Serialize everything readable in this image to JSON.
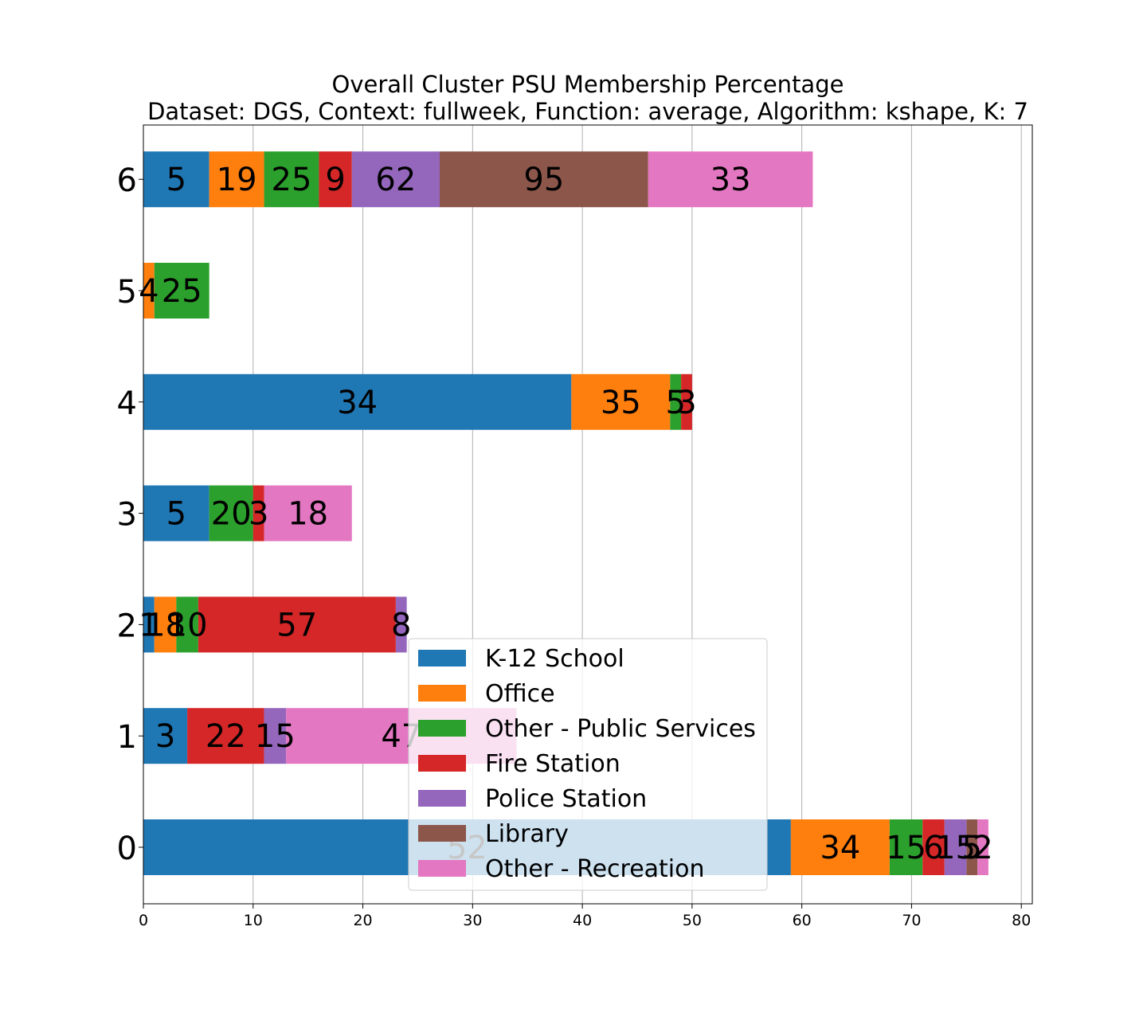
{
  "chart_data": {
    "type": "bar",
    "orientation": "horizontal",
    "stacked": true,
    "title": "Overall Cluster  PSU Membership Percentage",
    "subtitle": "Dataset: DGS, Context: fullweek, Function: average, Algorithm: kshape, K: 7",
    "xlabel": "",
    "ylabel": "",
    "xlim": [
      0,
      81
    ],
    "xticks": [
      "0",
      "10",
      "20",
      "30",
      "40",
      "50",
      "60",
      "70",
      "80"
    ],
    "grid": "x",
    "legend_position": "lower-center",
    "categories": [
      "0",
      "1",
      "2",
      "3",
      "4",
      "5",
      "6"
    ],
    "series": [
      {
        "name": "K-12 School",
        "color": "#1f77b4",
        "values": [
          59,
          4,
          1,
          6,
          39,
          0,
          6
        ],
        "labels": [
          "52",
          "3",
          "1",
          "5",
          "34",
          "",
          "5"
        ]
      },
      {
        "name": "Office",
        "color": "#ff7f0e",
        "values": [
          9,
          0,
          2,
          0,
          9,
          1,
          5
        ],
        "labels": [
          "34",
          "",
          "18",
          "",
          "35",
          "4",
          "19"
        ]
      },
      {
        "name": "Other - Public Services",
        "color": "#2ca02c",
        "values": [
          3,
          0,
          2,
          4,
          1,
          5,
          5
        ],
        "labels": [
          "15",
          "",
          "10",
          "20",
          "5",
          "25",
          "25"
        ]
      },
      {
        "name": "Fire Station",
        "color": "#d62728",
        "values": [
          2,
          7,
          18,
          1,
          1,
          0,
          3
        ],
        "labels": [
          "6",
          "22",
          "57",
          "3",
          "3",
          "",
          "9"
        ]
      },
      {
        "name": "Police Station",
        "color": "#9467bd",
        "values": [
          2,
          2,
          1,
          0,
          0,
          0,
          8
        ],
        "labels": [
          "15",
          "15",
          "8",
          "",
          "",
          "",
          "62"
        ]
      },
      {
        "name": "Library",
        "color": "#8c564b",
        "values": [
          1,
          0,
          0,
          0,
          0,
          0,
          19
        ],
        "labels": [
          "5",
          "",
          "",
          "",
          "",
          "",
          "95"
        ]
      },
      {
        "name": "Other - Recreation",
        "color": "#e377c2",
        "values": [
          1,
          21,
          0,
          8,
          0,
          0,
          15
        ],
        "labels": [
          "2",
          "47",
          "",
          "18",
          "",
          "",
          "33"
        ]
      }
    ]
  }
}
